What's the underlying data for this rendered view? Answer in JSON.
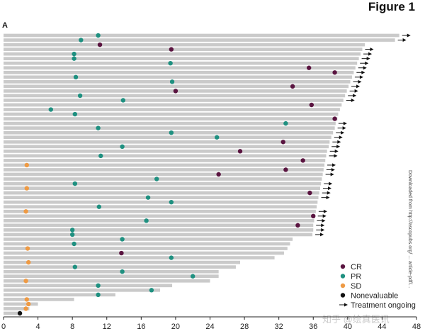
{
  "figure_title": "Figure 1",
  "panel_label": "A",
  "side_note": "Downloaded from http://ascopubs.org/ ... article-pdf/...",
  "watermark": "知乎 @绘真医讯",
  "colors": {
    "bar": "#cacaca",
    "CR": "#5a1440",
    "PR": "#1f9080",
    "SD": "#ee9a44",
    "Nonevaluable": "#111111",
    "axis": "#222222"
  },
  "chart_data": {
    "type": "swimmer",
    "title": "Figure 1",
    "xlabel": "",
    "ylabel": "",
    "xlim": [
      0,
      48
    ],
    "xticks": [
      0,
      4,
      8,
      12,
      16,
      20,
      24,
      28,
      32,
      36,
      40,
      44,
      48
    ],
    "legend": [
      {
        "key": "CR",
        "label": "CR",
        "marker": "dot"
      },
      {
        "key": "PR",
        "label": "PR",
        "marker": "dot"
      },
      {
        "key": "SD",
        "label": "SD",
        "marker": "dot"
      },
      {
        "key": "Nonevaluable",
        "label": "Nonevaluable",
        "marker": "dot"
      },
      {
        "key": "ongoing",
        "label": "Treatment ongoing",
        "marker": "arrow"
      }
    ],
    "legend_position": "bottom-right",
    "patients": [
      {
        "duration": 46.0,
        "ongoing": true,
        "events": [
          {
            "t": 11.0,
            "type": "PR"
          }
        ]
      },
      {
        "duration": 45.5,
        "ongoing": true,
        "events": [
          {
            "t": 9.0,
            "type": "PR"
          }
        ]
      },
      {
        "duration": 42.0,
        "ongoing": false,
        "events": [
          {
            "t": 11.2,
            "type": "CR"
          }
        ]
      },
      {
        "duration": 41.7,
        "ongoing": true,
        "events": [
          {
            "t": 19.5,
            "type": "CR"
          }
        ]
      },
      {
        "duration": 41.5,
        "ongoing": true,
        "events": [
          {
            "t": 8.2,
            "type": "PR"
          }
        ]
      },
      {
        "duration": 41.3,
        "ongoing": true,
        "events": [
          {
            "t": 8.2,
            "type": "PR"
          }
        ]
      },
      {
        "duration": 41.1,
        "ongoing": true,
        "events": [
          {
            "t": 19.4,
            "type": "PR"
          }
        ]
      },
      {
        "duration": 40.9,
        "ongoing": true,
        "events": [
          {
            "t": 35.5,
            "type": "CR"
          }
        ]
      },
      {
        "duration": 40.7,
        "ongoing": true,
        "events": [
          {
            "t": 38.5,
            "type": "CR"
          }
        ]
      },
      {
        "duration": 40.5,
        "ongoing": true,
        "events": [
          {
            "t": 8.4,
            "type": "PR"
          }
        ]
      },
      {
        "duration": 40.3,
        "ongoing": true,
        "events": [
          {
            "t": 19.6,
            "type": "PR"
          }
        ]
      },
      {
        "duration": 40.1,
        "ongoing": true,
        "events": [
          {
            "t": 33.6,
            "type": "CR"
          }
        ]
      },
      {
        "duration": 39.9,
        "ongoing": true,
        "events": [
          {
            "t": 20.0,
            "type": "CR"
          }
        ]
      },
      {
        "duration": 39.7,
        "ongoing": true,
        "events": [
          {
            "t": 8.9,
            "type": "PR"
          }
        ]
      },
      {
        "duration": 39.5,
        "ongoing": true,
        "events": [
          {
            "t": 13.9,
            "type": "PR"
          }
        ]
      },
      {
        "duration": 39.3,
        "ongoing": false,
        "events": [
          {
            "t": 35.8,
            "type": "CR"
          }
        ]
      },
      {
        "duration": 39.1,
        "ongoing": false,
        "events": [
          {
            "t": 5.5,
            "type": "PR"
          }
        ]
      },
      {
        "duration": 38.9,
        "ongoing": false,
        "events": [
          {
            "t": 8.3,
            "type": "PR"
          }
        ]
      },
      {
        "duration": 38.8,
        "ongoing": false,
        "events": [
          {
            "t": 38.5,
            "type": "CR"
          }
        ]
      },
      {
        "duration": 38.6,
        "ongoing": true,
        "events": [
          {
            "t": 32.8,
            "type": "PR"
          }
        ]
      },
      {
        "duration": 38.5,
        "ongoing": true,
        "events": [
          {
            "t": 11.0,
            "type": "PR"
          }
        ]
      },
      {
        "duration": 38.3,
        "ongoing": true,
        "events": [
          {
            "t": 19.5,
            "type": "PR"
          }
        ]
      },
      {
        "duration": 38.1,
        "ongoing": true,
        "events": [
          {
            "t": 24.8,
            "type": "PR"
          }
        ]
      },
      {
        "duration": 37.9,
        "ongoing": true,
        "events": [
          {
            "t": 32.5,
            "type": "CR"
          }
        ]
      },
      {
        "duration": 37.8,
        "ongoing": true,
        "events": [
          {
            "t": 13.8,
            "type": "PR"
          }
        ]
      },
      {
        "duration": 37.6,
        "ongoing": true,
        "events": [
          {
            "t": 27.5,
            "type": "CR"
          }
        ]
      },
      {
        "duration": 37.5,
        "ongoing": true,
        "events": [
          {
            "t": 11.3,
            "type": "PR"
          }
        ]
      },
      {
        "duration": 37.4,
        "ongoing": false,
        "events": [
          {
            "t": 34.8,
            "type": "CR"
          }
        ]
      },
      {
        "duration": 37.3,
        "ongoing": true,
        "events": [
          {
            "t": 2.7,
            "type": "SD"
          }
        ]
      },
      {
        "duration": 37.2,
        "ongoing": true,
        "events": [
          {
            "t": 32.8,
            "type": "CR"
          }
        ]
      },
      {
        "duration": 37.1,
        "ongoing": true,
        "events": [
          {
            "t": 25.0,
            "type": "CR"
          }
        ]
      },
      {
        "duration": 37.0,
        "ongoing": false,
        "events": [
          {
            "t": 17.8,
            "type": "PR"
          }
        ]
      },
      {
        "duration": 36.9,
        "ongoing": true,
        "events": [
          {
            "t": 8.3,
            "type": "PR"
          }
        ]
      },
      {
        "duration": 36.8,
        "ongoing": true,
        "events": [
          {
            "t": 2.7,
            "type": "SD"
          }
        ]
      },
      {
        "duration": 36.7,
        "ongoing": true,
        "events": [
          {
            "t": 35.6,
            "type": "CR"
          }
        ]
      },
      {
        "duration": 36.6,
        "ongoing": true,
        "events": [
          {
            "t": 16.8,
            "type": "PR"
          }
        ]
      },
      {
        "duration": 36.5,
        "ongoing": false,
        "events": [
          {
            "t": 19.5,
            "type": "PR"
          }
        ]
      },
      {
        "duration": 36.4,
        "ongoing": false,
        "events": [
          {
            "t": 11.1,
            "type": "PR"
          }
        ]
      },
      {
        "duration": 36.3,
        "ongoing": true,
        "events": [
          {
            "t": 2.6,
            "type": "SD"
          }
        ]
      },
      {
        "duration": 36.2,
        "ongoing": true,
        "events": [
          {
            "t": 36.0,
            "type": "CR"
          }
        ]
      },
      {
        "duration": 36.1,
        "ongoing": true,
        "events": [
          {
            "t": 16.6,
            "type": "PR"
          }
        ]
      },
      {
        "duration": 36.0,
        "ongoing": true,
        "events": [
          {
            "t": 34.2,
            "type": "CR"
          }
        ]
      },
      {
        "duration": 36.0,
        "ongoing": true,
        "events": [
          {
            "t": 8.0,
            "type": "PR"
          }
        ]
      },
      {
        "duration": 35.9,
        "ongoing": true,
        "events": [
          {
            "t": 8.0,
            "type": "PR"
          }
        ]
      },
      {
        "duration": 33.6,
        "ongoing": false,
        "events": [
          {
            "t": 13.8,
            "type": "PR"
          }
        ]
      },
      {
        "duration": 33.3,
        "ongoing": false,
        "events": [
          {
            "t": 8.2,
            "type": "PR"
          }
        ]
      },
      {
        "duration": 33.0,
        "ongoing": false,
        "events": [
          {
            "t": 2.8,
            "type": "SD"
          }
        ]
      },
      {
        "duration": 32.6,
        "ongoing": false,
        "events": [
          {
            "t": 13.7,
            "type": "CR"
          }
        ]
      },
      {
        "duration": 31.5,
        "ongoing": false,
        "events": [
          {
            "t": 19.5,
            "type": "PR"
          }
        ]
      },
      {
        "duration": 27.5,
        "ongoing": false,
        "events": [
          {
            "t": 2.9,
            "type": "SD"
          }
        ]
      },
      {
        "duration": 27.0,
        "ongoing": false,
        "events": [
          {
            "t": 8.3,
            "type": "PR"
          }
        ]
      },
      {
        "duration": 25.0,
        "ongoing": false,
        "events": [
          {
            "t": 13.8,
            "type": "PR"
          }
        ]
      },
      {
        "duration": 25.0,
        "ongoing": false,
        "events": [
          {
            "t": 22.0,
            "type": "PR"
          }
        ]
      },
      {
        "duration": 24.0,
        "ongoing": false,
        "events": [
          {
            "t": 2.6,
            "type": "SD"
          }
        ]
      },
      {
        "duration": 19.6,
        "ongoing": false,
        "events": [
          {
            "t": 11.0,
            "type": "PR"
          }
        ]
      },
      {
        "duration": 18.2,
        "ongoing": false,
        "events": [
          {
            "t": 17.2,
            "type": "PR"
          }
        ]
      },
      {
        "duration": 13.0,
        "ongoing": false,
        "events": [
          {
            "t": 11.0,
            "type": "PR"
          }
        ]
      },
      {
        "duration": 8.2,
        "ongoing": false,
        "events": [
          {
            "t": 2.7,
            "type": "SD"
          }
        ]
      },
      {
        "duration": 4.0,
        "ongoing": false,
        "events": [
          {
            "t": 2.9,
            "type": "SD"
          }
        ]
      },
      {
        "duration": 3.0,
        "ongoing": false,
        "events": [
          {
            "t": 2.6,
            "type": "SD"
          }
        ]
      },
      {
        "duration": 2.0,
        "ongoing": false,
        "events": [
          {
            "t": 1.9,
            "type": "Nonevaluable"
          }
        ]
      }
    ]
  }
}
